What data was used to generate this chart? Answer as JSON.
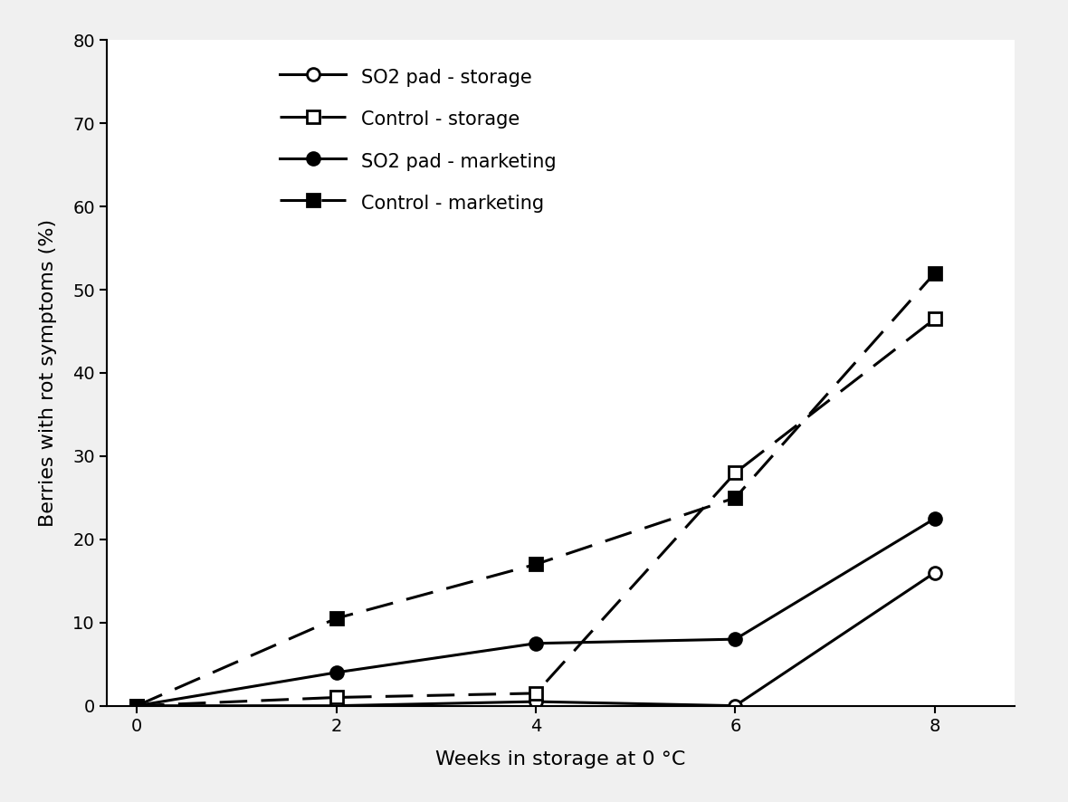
{
  "x": [
    0,
    2,
    4,
    6,
    8
  ],
  "so2_storage": [
    0,
    0,
    0.5,
    0,
    16
  ],
  "control_storage": [
    0,
    1,
    1.5,
    28,
    46.5
  ],
  "so2_marketing": [
    0,
    4,
    7.5,
    8,
    22.5
  ],
  "control_marketing": [
    0,
    10.5,
    17,
    25,
    52
  ],
  "xlabel": "Weeks in storage at 0 °C",
  "ylabel": "Berries with rot symptoms (%)",
  "ylim": [
    0,
    80
  ],
  "xlim": [
    -0.3,
    8.8
  ],
  "yticks": [
    0,
    10,
    20,
    30,
    40,
    50,
    60,
    70,
    80
  ],
  "xticks": [
    0,
    2,
    4,
    6,
    8
  ],
  "legend_labels": [
    "SO2 pad - storage",
    "Control - storage",
    "SO2 pad - marketing",
    "Control - marketing"
  ],
  "color": "#000000",
  "background_color": "#f0f0f0",
  "plot_bg_color": "#ffffff",
  "linewidth": 2.2,
  "markersize": 10
}
